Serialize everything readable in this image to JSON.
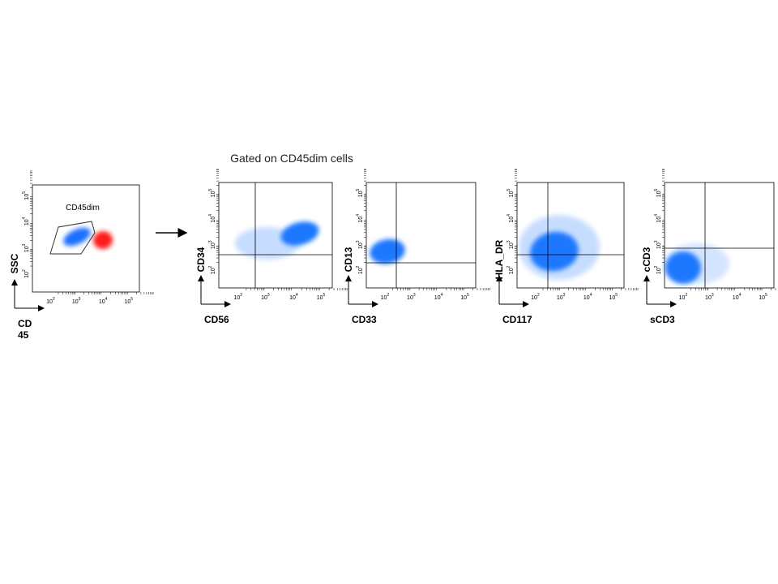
{
  "title": "Gated on CD45dim cells",
  "tick_base": "10",
  "tick_exponents": [
    "2",
    "3",
    "4",
    "5"
  ],
  "panels": [
    {
      "gate_label": "CD45dim",
      "y_label": "SSC",
      "x_label": "CD45"
    },
    {
      "y_label": "CD34",
      "x_label": "CD56"
    },
    {
      "y_label": "CD13",
      "x_label": "CD33"
    },
    {
      "y_label": "HLA_DR",
      "x_label": "CD117"
    },
    {
      "y_label": "cCD3",
      "x_label": "sCD3"
    }
  ]
}
